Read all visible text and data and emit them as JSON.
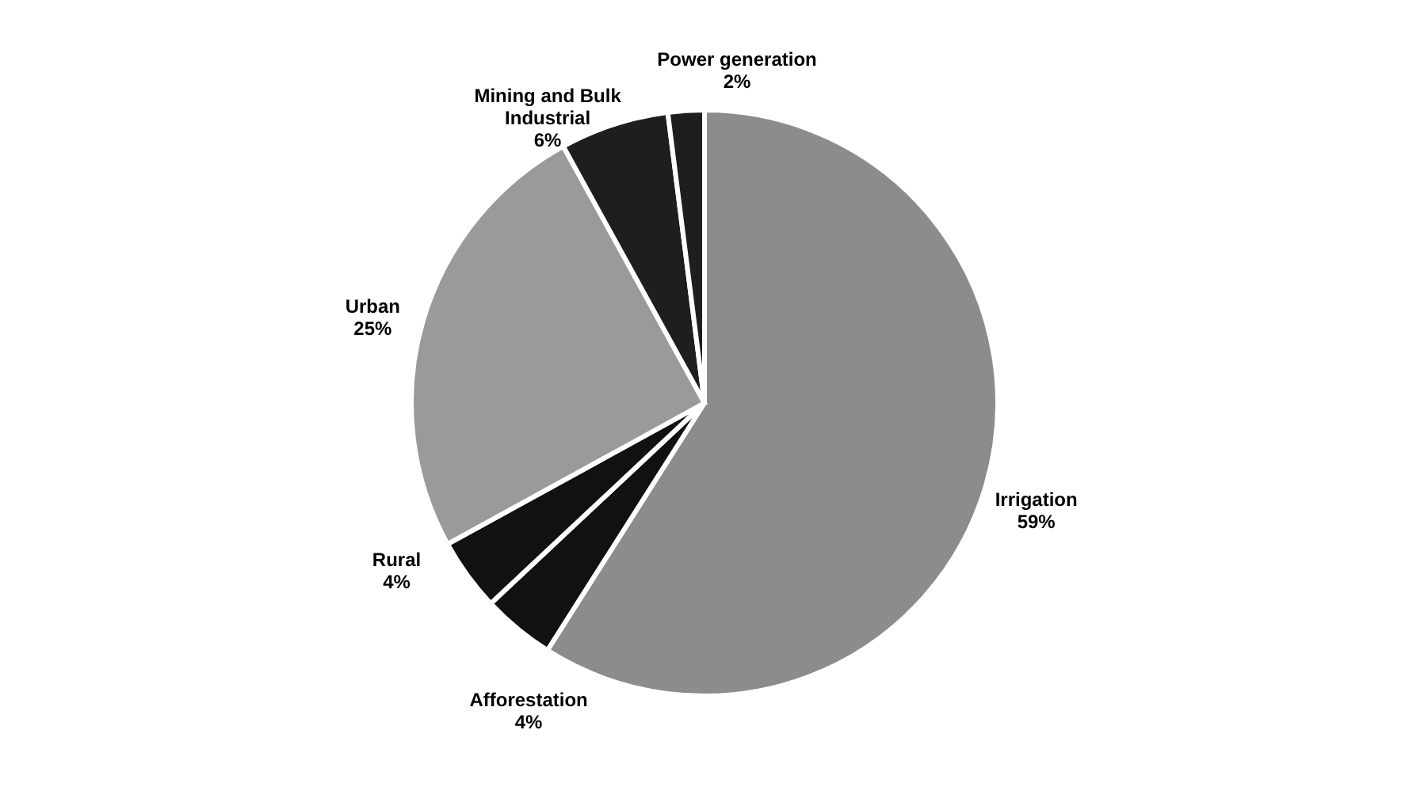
{
  "chart_data": {
    "type": "pie",
    "categories": [
      "Irrigation",
      "Afforestation",
      "Rural",
      "Urban",
      "Mining and Bulk Industrial",
      "Power generation"
    ],
    "values": [
      59,
      4,
      4,
      25,
      6,
      2
    ],
    "value_labels": [
      "59%",
      "4%",
      "4%",
      "25%",
      "6%",
      "2%"
    ],
    "colors": [
      "#8c8c8c",
      "#111111",
      "#111111",
      "#9a9a9a",
      "#1e1e1e",
      "#1e1e1e"
    ],
    "legend": false
  }
}
